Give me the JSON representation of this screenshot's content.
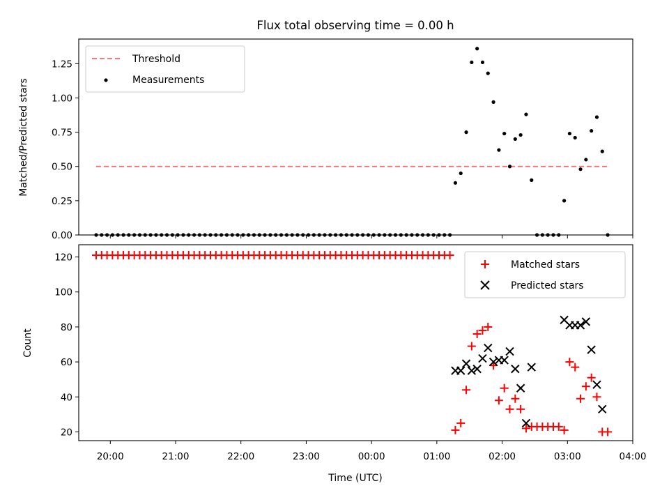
{
  "title": "Flux total observing time = 0.00 h",
  "colors": {
    "threshold": "#ff6666",
    "measurements": "#000000",
    "matched": "#ff0000",
    "predicted": "#000000"
  },
  "chart_data": [
    {
      "type": "scatter",
      "ylabel": "Matched/Predicted stars",
      "ylim": [
        0,
        1.43
      ],
      "xlim": [
        "19:31",
        "04:00"
      ],
      "yticks": [
        "0.00",
        "0.25",
        "0.50",
        "0.75",
        "1.00",
        "1.25"
      ],
      "legend": {
        "placement": "upper-left",
        "entries": [
          "Threshold",
          "Measurements"
        ]
      },
      "threshold": {
        "name": "Threshold",
        "y": 0.5,
        "x": [
          "19:47",
          "03:38"
        ]
      },
      "series": [
        {
          "name": "Measurements",
          "points": [
            [
              "19:47",
              0
            ],
            [
              "19:52",
              0
            ],
            [
              "19:57",
              0
            ],
            [
              "20:02",
              0
            ],
            [
              "20:07",
              0
            ],
            [
              "20:12",
              0
            ],
            [
              "20:17",
              0
            ],
            [
              "20:22",
              0
            ],
            [
              "20:27",
              0
            ],
            [
              "20:32",
              0
            ],
            [
              "20:37",
              0
            ],
            [
              "20:42",
              0
            ],
            [
              "20:47",
              0
            ],
            [
              "20:52",
              0
            ],
            [
              "20:57",
              0
            ],
            [
              "21:02",
              0
            ],
            [
              "21:07",
              0
            ],
            [
              "21:12",
              0
            ],
            [
              "21:17",
              0
            ],
            [
              "21:22",
              0
            ],
            [
              "21:27",
              0
            ],
            [
              "21:32",
              0
            ],
            [
              "21:37",
              0
            ],
            [
              "21:42",
              0
            ],
            [
              "21:47",
              0
            ],
            [
              "21:52",
              0
            ],
            [
              "21:57",
              0
            ],
            [
              "22:02",
              0
            ],
            [
              "22:07",
              0
            ],
            [
              "22:12",
              0
            ],
            [
              "22:17",
              0
            ],
            [
              "22:22",
              0
            ],
            [
              "22:27",
              0
            ],
            [
              "22:32",
              0
            ],
            [
              "22:37",
              0
            ],
            [
              "22:42",
              0
            ],
            [
              "22:47",
              0
            ],
            [
              "22:52",
              0
            ],
            [
              "22:57",
              0
            ],
            [
              "23:02",
              0
            ],
            [
              "23:07",
              0
            ],
            [
              "23:12",
              0
            ],
            [
              "23:17",
              0
            ],
            [
              "23:22",
              0
            ],
            [
              "23:27",
              0
            ],
            [
              "23:32",
              0
            ],
            [
              "23:37",
              0
            ],
            [
              "23:42",
              0
            ],
            [
              "23:47",
              0
            ],
            [
              "23:52",
              0
            ],
            [
              "23:57",
              0
            ],
            [
              "00:02",
              0
            ],
            [
              "00:07",
              0
            ],
            [
              "00:12",
              0
            ],
            [
              "00:17",
              0
            ],
            [
              "00:22",
              0
            ],
            [
              "00:27",
              0
            ],
            [
              "00:32",
              0
            ],
            [
              "00:37",
              0
            ],
            [
              "00:42",
              0
            ],
            [
              "00:47",
              0
            ],
            [
              "00:52",
              0
            ],
            [
              "00:57",
              0
            ],
            [
              "01:02",
              0
            ],
            [
              "01:07",
              0
            ],
            [
              "01:12",
              0
            ],
            [
              "01:17",
              0.38
            ],
            [
              "01:22",
              0.45
            ],
            [
              "01:27",
              0.75
            ],
            [
              "01:32",
              1.26
            ],
            [
              "01:37",
              1.36
            ],
            [
              "01:42",
              1.26
            ],
            [
              "01:47",
              1.18
            ],
            [
              "01:52",
              0.97
            ],
            [
              "01:57",
              0.62
            ],
            [
              "02:02",
              0.74
            ],
            [
              "02:07",
              0.5
            ],
            [
              "02:12",
              0.7
            ],
            [
              "02:17",
              0.73
            ],
            [
              "02:22",
              0.88
            ],
            [
              "02:27",
              0.4
            ],
            [
              "02:32",
              0
            ],
            [
              "02:37",
              0
            ],
            [
              "02:42",
              0
            ],
            [
              "02:47",
              0
            ],
            [
              "02:52",
              0
            ],
            [
              "02:57",
              0.25
            ],
            [
              "03:02",
              0.74
            ],
            [
              "03:07",
              0.71
            ],
            [
              "03:12",
              0.48
            ],
            [
              "03:17",
              0.55
            ],
            [
              "03:22",
              0.76
            ],
            [
              "03:27",
              0.86
            ],
            [
              "03:32",
              0.61
            ],
            [
              "03:37",
              0
            ]
          ]
        }
      ]
    },
    {
      "type": "scatter",
      "xlabel": "Time (UTC)",
      "ylabel": "Count",
      "ylim": [
        15,
        127
      ],
      "xlim": [
        "19:31",
        "04:00"
      ],
      "xticks": [
        "20:00",
        "21:00",
        "22:00",
        "23:00",
        "00:00",
        "01:00",
        "02:00",
        "03:00",
        "04:00"
      ],
      "yticks": [
        "20",
        "40",
        "60",
        "80",
        "100",
        "120"
      ],
      "legend": {
        "placement": "upper-right",
        "entries": [
          "Matched stars",
          "Predicted stars"
        ]
      },
      "series": [
        {
          "name": "Matched stars",
          "points": [
            [
              "19:47",
              121
            ],
            [
              "19:52",
              121
            ],
            [
              "19:57",
              121
            ],
            [
              "20:02",
              121
            ],
            [
              "20:07",
              121
            ],
            [
              "20:12",
              121
            ],
            [
              "20:17",
              121
            ],
            [
              "20:22",
              121
            ],
            [
              "20:27",
              121
            ],
            [
              "20:32",
              121
            ],
            [
              "20:37",
              121
            ],
            [
              "20:42",
              121
            ],
            [
              "20:47",
              121
            ],
            [
              "20:52",
              121
            ],
            [
              "20:57",
              121
            ],
            [
              "21:02",
              121
            ],
            [
              "21:07",
              121
            ],
            [
              "21:12",
              121
            ],
            [
              "21:17",
              121
            ],
            [
              "21:22",
              121
            ],
            [
              "21:27",
              121
            ],
            [
              "21:32",
              121
            ],
            [
              "21:37",
              121
            ],
            [
              "21:42",
              121
            ],
            [
              "21:47",
              121
            ],
            [
              "21:52",
              121
            ],
            [
              "21:57",
              121
            ],
            [
              "22:02",
              121
            ],
            [
              "22:07",
              121
            ],
            [
              "22:12",
              121
            ],
            [
              "22:17",
              121
            ],
            [
              "22:22",
              121
            ],
            [
              "22:27",
              121
            ],
            [
              "22:32",
              121
            ],
            [
              "22:37",
              121
            ],
            [
              "22:42",
              121
            ],
            [
              "22:47",
              121
            ],
            [
              "22:52",
              121
            ],
            [
              "22:57",
              121
            ],
            [
              "23:02",
              121
            ],
            [
              "23:07",
              121
            ],
            [
              "23:12",
              121
            ],
            [
              "23:17",
              121
            ],
            [
              "23:22",
              121
            ],
            [
              "23:27",
              121
            ],
            [
              "23:32",
              121
            ],
            [
              "23:37",
              121
            ],
            [
              "23:42",
              121
            ],
            [
              "23:47",
              121
            ],
            [
              "23:52",
              121
            ],
            [
              "23:57",
              121
            ],
            [
              "00:02",
              121
            ],
            [
              "00:07",
              121
            ],
            [
              "00:12",
              121
            ],
            [
              "00:17",
              121
            ],
            [
              "00:22",
              121
            ],
            [
              "00:27",
              121
            ],
            [
              "00:32",
              121
            ],
            [
              "00:37",
              121
            ],
            [
              "00:42",
              121
            ],
            [
              "00:47",
              121
            ],
            [
              "00:52",
              121
            ],
            [
              "00:57",
              121
            ],
            [
              "01:02",
              121
            ],
            [
              "01:07",
              121
            ],
            [
              "01:12",
              121
            ],
            [
              "01:17",
              21
            ],
            [
              "01:22",
              25
            ],
            [
              "01:27",
              44
            ],
            [
              "01:32",
              69
            ],
            [
              "01:37",
              76
            ],
            [
              "01:42",
              78
            ],
            [
              "01:47",
              80
            ],
            [
              "01:52",
              58
            ],
            [
              "01:57",
              38
            ],
            [
              "02:02",
              45
            ],
            [
              "02:07",
              33
            ],
            [
              "02:12",
              39
            ],
            [
              "02:17",
              33
            ],
            [
              "02:22",
              22
            ],
            [
              "02:27",
              23
            ],
            [
              "02:32",
              23
            ],
            [
              "02:37",
              23
            ],
            [
              "02:42",
              23
            ],
            [
              "02:47",
              23
            ],
            [
              "02:52",
              23
            ],
            [
              "02:57",
              21
            ],
            [
              "03:02",
              60
            ],
            [
              "03:07",
              57
            ],
            [
              "03:12",
              39
            ],
            [
              "03:17",
              46
            ],
            [
              "03:22",
              51
            ],
            [
              "03:27",
              40
            ],
            [
              "03:32",
              20
            ],
            [
              "03:37",
              20
            ]
          ]
        },
        {
          "name": "Predicted stars",
          "points": [
            [
              "01:17",
              55
            ],
            [
              "01:22",
              55
            ],
            [
              "01:27",
              59
            ],
            [
              "01:32",
              55
            ],
            [
              "01:37",
              56
            ],
            [
              "01:42",
              62
            ],
            [
              "01:47",
              68
            ],
            [
              "01:52",
              60
            ],
            [
              "01:57",
              61
            ],
            [
              "02:02",
              61
            ],
            [
              "02:07",
              66
            ],
            [
              "02:12",
              56
            ],
            [
              "02:17",
              45
            ],
            [
              "02:22",
              25
            ],
            [
              "02:27",
              57
            ],
            [
              "02:57",
              84
            ],
            [
              "03:02",
              81
            ],
            [
              "03:07",
              81
            ],
            [
              "03:12",
              81
            ],
            [
              "03:17",
              83
            ],
            [
              "03:22",
              67
            ],
            [
              "03:27",
              47
            ],
            [
              "03:32",
              33
            ]
          ]
        }
      ]
    }
  ]
}
